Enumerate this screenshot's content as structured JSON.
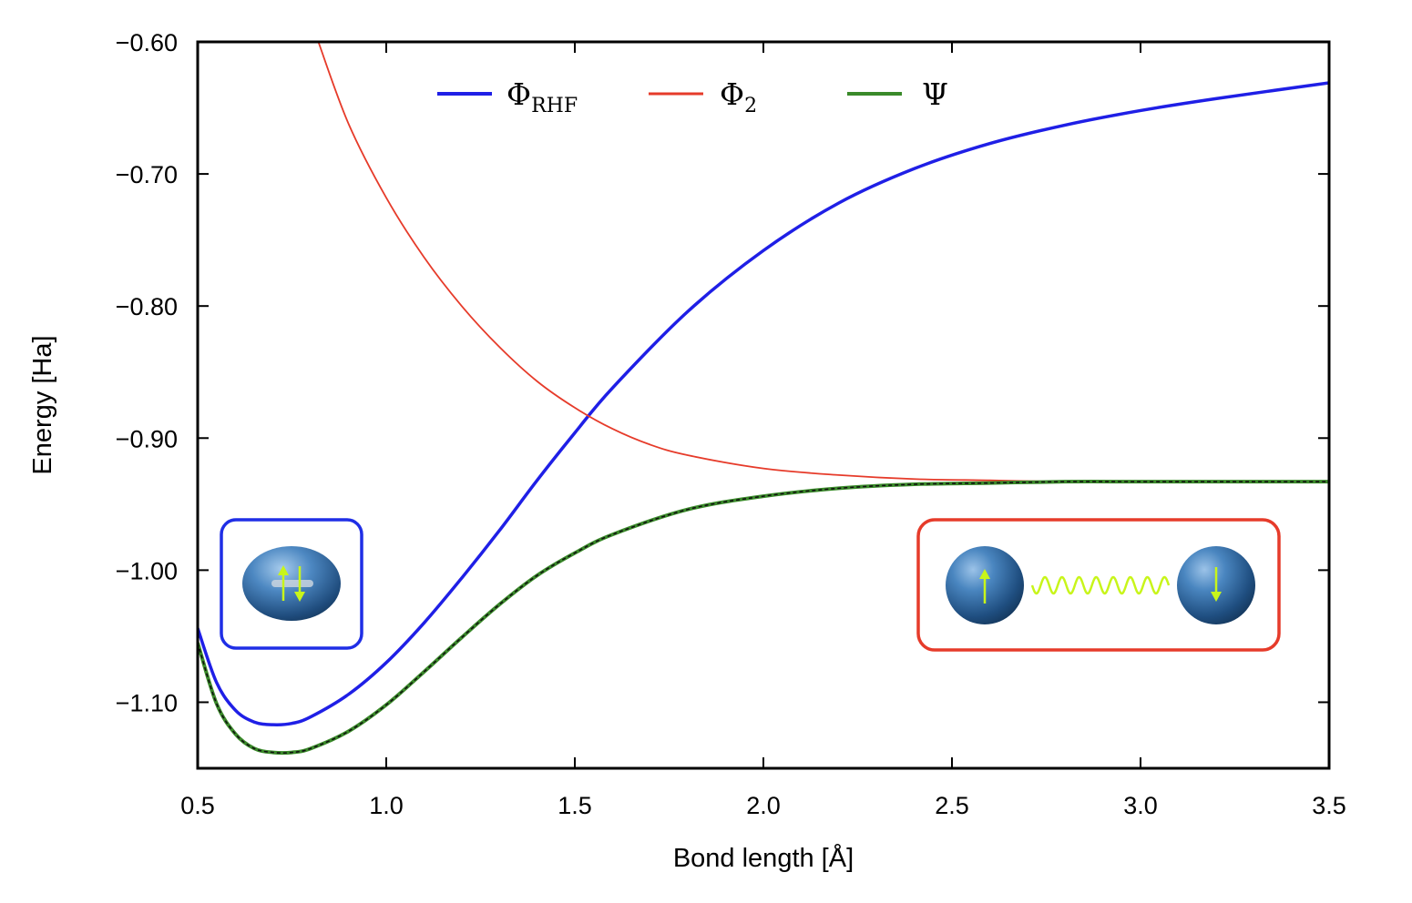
{
  "chart_data": {
    "type": "line",
    "xlabel": "Bond length [Å]",
    "ylabel": "Energy [Ha]",
    "xlim": [
      0.5,
      3.5
    ],
    "ylim": [
      -1.15,
      -0.6
    ],
    "x_ticks": [
      "0.5",
      "1.0",
      "1.5",
      "2.0",
      "2.5",
      "3.0",
      "3.5"
    ],
    "x_tick_values": [
      0.5,
      1.0,
      1.5,
      2.0,
      2.5,
      3.0,
      3.5
    ],
    "y_ticks": [
      "−0.60",
      "−0.70",
      "−0.80",
      "−0.90",
      "−1.00",
      "−1.10"
    ],
    "y_tick_values": [
      -0.6,
      -0.7,
      -0.8,
      -0.9,
      -1.0,
      -1.1
    ],
    "grid": false,
    "legend_position": "top",
    "series": [
      {
        "name": "Φ",
        "name_subscript": "RHF",
        "color": "#1f1fe6",
        "x": [
          0.5,
          0.55,
          0.6,
          0.65,
          0.7,
          0.75,
          0.8,
          0.9,
          1.0,
          1.1,
          1.2,
          1.3,
          1.4,
          1.5,
          1.6,
          1.8,
          2.0,
          2.2,
          2.4,
          2.6,
          2.8,
          3.0,
          3.2,
          3.5
        ],
        "y": [
          -1.044,
          -1.085,
          -1.106,
          -1.115,
          -1.117,
          -1.116,
          -1.111,
          -1.094,
          -1.07,
          -1.04,
          -1.006,
          -0.97,
          -0.932,
          -0.896,
          -0.862,
          -0.804,
          -0.758,
          -0.722,
          -0.696,
          -0.677,
          -0.663,
          -0.652,
          -0.643,
          -0.631
        ]
      },
      {
        "name": "Φ",
        "name_subscript": "2",
        "color": "#e63b2a",
        "x": [
          0.82,
          0.9,
          1.0,
          1.1,
          1.2,
          1.3,
          1.4,
          1.5,
          1.6,
          1.7,
          1.8,
          2.0,
          2.2,
          2.4,
          2.6,
          2.8,
          3.0,
          3.2,
          3.5
        ],
        "y": [
          -0.6,
          -0.662,
          -0.718,
          -0.763,
          -0.8,
          -0.831,
          -0.857,
          -0.877,
          -0.893,
          -0.905,
          -0.913,
          -0.923,
          -0.928,
          -0.931,
          -0.932,
          -0.933,
          -0.933,
          -0.933,
          -0.933
        ]
      },
      {
        "name": "Ψ",
        "name_subscript": "",
        "color": "#3a8a2a",
        "x": [
          0.5,
          0.55,
          0.6,
          0.65,
          0.7,
          0.75,
          0.8,
          0.9,
          1.0,
          1.1,
          1.2,
          1.3,
          1.4,
          1.5,
          1.6,
          1.8,
          2.0,
          2.2,
          2.4,
          2.6,
          2.8,
          3.0,
          3.2,
          3.5
        ],
        "y": [
          -1.055,
          -1.101,
          -1.124,
          -1.135,
          -1.138,
          -1.138,
          -1.135,
          -1.122,
          -1.102,
          -1.077,
          -1.051,
          -1.026,
          -1.004,
          -0.987,
          -0.973,
          -0.954,
          -0.944,
          -0.938,
          -0.935,
          -0.934,
          -0.933,
          -0.933,
          -0.933,
          -0.933
        ]
      }
    ]
  }
}
